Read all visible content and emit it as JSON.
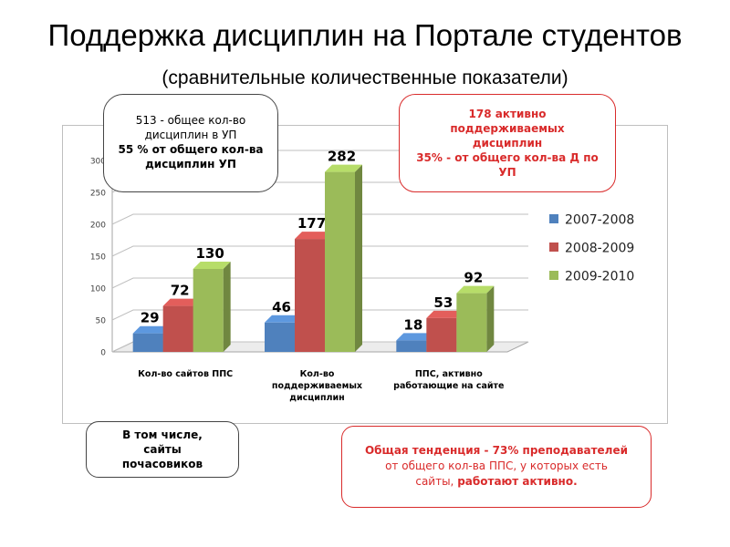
{
  "slide": {
    "title_main": "Поддержка дисциплин на Портале студентов",
    "title_sub": "(сравнительные количественные показатели)"
  },
  "callouts": {
    "top_left": {
      "line1": "513  - общее кол-во",
      "line2": "дисциплин в УП",
      "line3": "55 % от общего кол-ва",
      "line4": "дисциплин УП"
    },
    "top_right": {
      "line1": "178 активно",
      "line2": "поддерживаемых",
      "line3": "дисциплин",
      "line4": "35% - от общего кол-ва Д по",
      "line5": "УП"
    },
    "bottom_left": {
      "line1": "В том числе,",
      "line2": "сайты",
      "line3": "почасовиков"
    },
    "bottom_right": {
      "line1": "Общая тенденция - 73% преподавателей",
      "line2": "от общего кол-ва ППС, у которых есть",
      "line3_a": "сайты, ",
      "line3_b": "работают активно."
    }
  },
  "chart_data": {
    "type": "bar",
    "title": "",
    "xlabel": "",
    "ylabel": "",
    "ylim": [
      0,
      300
    ],
    "yticks": [
      0,
      50,
      100,
      150,
      200,
      250,
      300
    ],
    "grid": true,
    "legend_position": "right",
    "categories": [
      [
        "Кол-во сайтов ППС"
      ],
      [
        "Кол-во",
        "поддерживаемых",
        "дисциплин"
      ],
      [
        "ППС, активно",
        "работающие на сайте"
      ]
    ],
    "series": [
      {
        "name": "2007-2008",
        "color": "#4f81bd",
        "values": [
          29,
          46,
          18
        ]
      },
      {
        "name": "2008-2009",
        "color": "#c0504d",
        "values": [
          72,
          177,
          53
        ]
      },
      {
        "name": "2009-2010",
        "color": "#9bbb59",
        "values": [
          130,
          282,
          92
        ]
      }
    ]
  }
}
